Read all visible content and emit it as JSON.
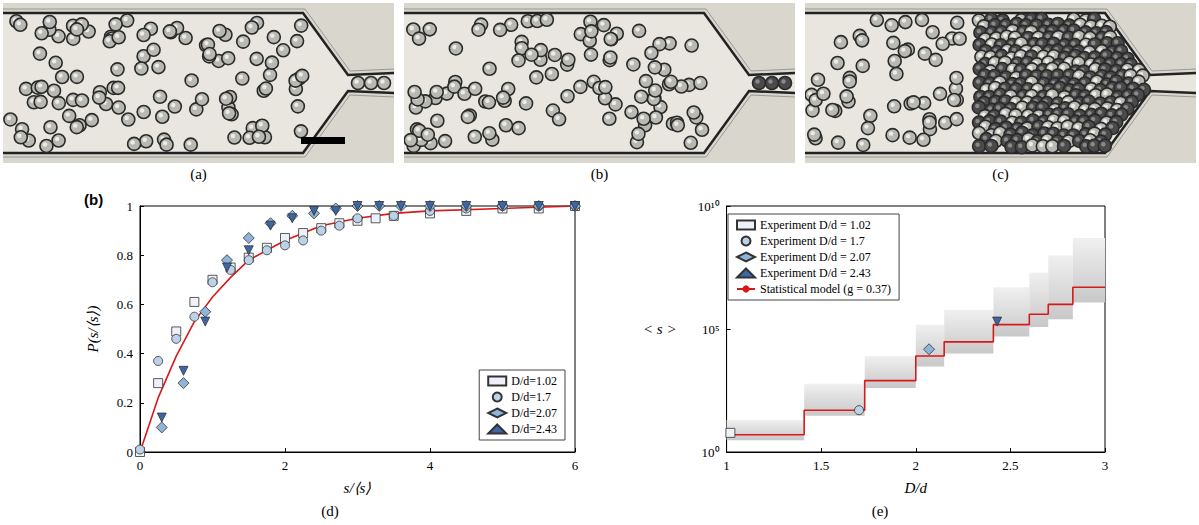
{
  "images": [
    {
      "caption": "(a)"
    },
    {
      "caption": "(b)"
    },
    {
      "caption": "(c)"
    }
  ],
  "chart_data": [
    {
      "type": "scatter",
      "caption": "(d)",
      "annotation": "(b)",
      "x_label": "s/⟨s⟩",
      "y_label": "P(s/⟨s⟩)",
      "xlim": [
        0,
        6
      ],
      "xticks": [
        0,
        2,
        4,
        6
      ],
      "ylim": [
        0,
        1
      ],
      "yticks": [
        0,
        0.2,
        0.4,
        0.6,
        0.8,
        1
      ],
      "grid": false,
      "legend": "lower right",
      "series": [
        {
          "name": "D/d=1.02",
          "marker": "square",
          "color": "#eef1f8",
          "x": [
            0,
            0.25,
            0.5,
            0.75,
            1.0,
            1.25,
            1.5,
            1.75,
            2.0,
            2.25,
            2.5,
            2.75,
            3.0,
            3.25,
            3.5,
            4.0,
            4.5,
            5.0,
            5.5,
            6.0
          ],
          "values": [
            0,
            0.28,
            0.49,
            0.61,
            0.7,
            0.75,
            0.79,
            0.83,
            0.87,
            0.89,
            0.91,
            0.93,
            0.94,
            0.95,
            0.96,
            0.97,
            0.98,
            0.99,
            0.99,
            1.0
          ]
        },
        {
          "name": "D/d=1.7",
          "marker": "circle",
          "color": "#bcd2e8",
          "x": [
            0,
            0.25,
            0.5,
            0.75,
            1.0,
            1.25,
            1.5,
            1.75,
            2.0,
            2.25,
            2.5,
            2.75,
            3.0,
            3.5,
            4.0,
            4.5,
            5.0,
            5.5,
            6.0
          ],
          "values": [
            0.01,
            0.37,
            0.46,
            0.55,
            0.69,
            0.74,
            0.78,
            0.82,
            0.84,
            0.86,
            0.9,
            0.92,
            0.95,
            0.96,
            0.98,
            0.99,
            1.0,
            1.0,
            1.0
          ]
        },
        {
          "name": "D/d=2.07",
          "marker": "diamond",
          "color": "#8fb3d9",
          "x": [
            0.3,
            0.6,
            0.9,
            1.2,
            1.5,
            1.8,
            2.1,
            2.4,
            2.7,
            3.0,
            3.3,
            3.6,
            4.0,
            4.5,
            5.0,
            5.5,
            6.0
          ],
          "values": [
            0.1,
            0.28,
            0.57,
            0.78,
            0.87,
            0.93,
            0.96,
            0.97,
            0.99,
            1.0,
            1.0,
            1.0,
            1.0,
            1.0,
            1.0,
            1.0,
            1.0
          ]
        },
        {
          "name": "D/d=2.43",
          "marker": "triangle_down",
          "color": "#3d66a6",
          "x": [
            0.3,
            0.6,
            0.9,
            1.2,
            1.5,
            1.8,
            2.1,
            2.4,
            2.7,
            3.0,
            3.3,
            3.6,
            4.0,
            4.5,
            5.0,
            5.5,
            6.0
          ],
          "values": [
            0.14,
            0.33,
            0.53,
            0.75,
            0.82,
            0.92,
            0.95,
            0.98,
            0.98,
            1.0,
            1.0,
            1.0,
            1.0,
            1.0,
            1.0,
            1.0,
            1.0
          ]
        },
        {
          "type": "line",
          "color": "#d7191c",
          "line_style": "solid",
          "x": [
            0,
            0.25,
            0.5,
            0.75,
            1.0,
            1.25,
            1.5,
            2.0,
            2.5,
            3.0,
            3.5,
            4.0,
            5.0,
            6.0
          ],
          "values": [
            0,
            0.22,
            0.39,
            0.53,
            0.63,
            0.71,
            0.78,
            0.86,
            0.92,
            0.95,
            0.97,
            0.98,
            0.99,
            1.0
          ]
        }
      ]
    },
    {
      "type": "scatter",
      "caption": "(e)",
      "x_label": "D/d",
      "y_label": "< s >",
      "xlim": [
        1,
        3
      ],
      "xticks": [
        1,
        1.5,
        2,
        2.5,
        3
      ],
      "ylim": [
        1,
        10000000000
      ],
      "log": "y",
      "yticks": [
        {
          "value": 1,
          "label": "10⁰"
        },
        {
          "value": 100000,
          "label": "10⁵"
        },
        {
          "value": 10000000000,
          "label": "10¹⁰"
        }
      ],
      "grid": false,
      "legend": "upper left",
      "series": [
        {
          "name": "Experiment D/d = 1.02",
          "marker": "square",
          "color": "#eef1f8",
          "x": [
            1.02
          ],
          "values": [
            6
          ]
        },
        {
          "name": "Experiment D/d = 1.7",
          "marker": "circle",
          "color": "#bcd2e8",
          "x": [
            1.7
          ],
          "values": [
            50
          ]
        },
        {
          "name": "Experiment D/d = 2.07",
          "marker": "diamond",
          "color": "#8fb3d9",
          "x": [
            2.07
          ],
          "values": [
            15000
          ]
        },
        {
          "name": "Experiment D/d = 2.43",
          "marker": "triangle_down",
          "color": "#3d66a6",
          "x": [
            2.43
          ],
          "values": [
            200000
          ]
        },
        {
          "name": "Statistical model (g = 0.37)",
          "type": "step",
          "color": "#d7191c",
          "line_style": "solid",
          "bins": [
            1,
            1.41,
            1.73,
            2,
            2.15,
            2.41,
            2.6,
            2.7,
            2.83,
            3
          ],
          "values": [
            5,
            50,
            800,
            8000,
            30000,
            150000,
            400000,
            1000000,
            5000000
          ],
          "band_lower": [
            3,
            30,
            400,
            3000,
            10000,
            50000,
            120000,
            250000,
            1200000
          ],
          "band_upper": [
            20,
            600,
            8000,
            150000,
            600000,
            5000000,
            20000000,
            100000000,
            500000000
          ]
        }
      ]
    }
  ]
}
